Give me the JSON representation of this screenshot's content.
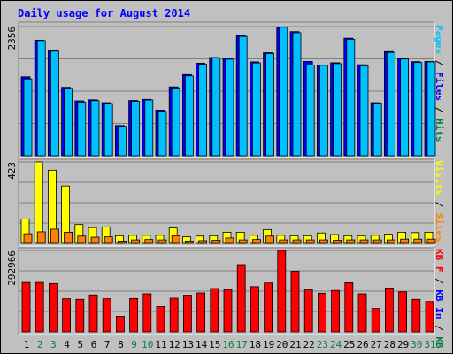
{
  "chart_data": {
    "type": "bar",
    "title": "Daily usage for August 2014",
    "categories": [
      "1",
      "2",
      "3",
      "4",
      "5",
      "6",
      "7",
      "8",
      "9",
      "10",
      "11",
      "12",
      "13",
      "14",
      "15",
      "16",
      "17",
      "18",
      "19",
      "20",
      "21",
      "22",
      "23",
      "24",
      "25",
      "26",
      "27",
      "28",
      "29",
      "30",
      "31"
    ],
    "weekend_days": [
      "2",
      "3",
      "9",
      "10",
      "16",
      "17",
      "23",
      "24",
      "30",
      "31"
    ],
    "grid": true,
    "panels": [
      {
        "id": "pages-files-hits",
        "max_label": "2356",
        "scale_max": 2356,
        "right_label_parts": [
          {
            "text": "Pages",
            "color": "#00c0ff"
          },
          {
            "text": " / ",
            "color": "#000000"
          },
          {
            "text": "Files",
            "color": "#0000ff"
          },
          {
            "text": " / ",
            "color": "#000000"
          },
          {
            "text": "Hits",
            "color": "#008040"
          }
        ],
        "series": [
          {
            "name": "Hits",
            "color": "#008040",
            "values": [
              1440,
              2108,
              1924,
              1248,
              1000,
              1020,
              968,
              552,
              1008,
              1028,
              832,
              1256,
              1480,
              1688,
              1792,
              1784,
              2196,
              1712,
              1880,
              2348,
              2264,
              1720,
              1656,
              1696,
              2144,
              1660,
              968,
              1900,
              1780,
              1716,
              1720
            ]
          },
          {
            "name": "Files",
            "color": "#0000ff",
            "values": [
              1440,
              2108,
              1924,
              1248,
              1000,
              1020,
              968,
              552,
              1008,
              1028,
              832,
              1256,
              1480,
              1688,
              1792,
              1784,
              2196,
              1712,
              1880,
              2348,
              2264,
              1720,
              1656,
              1696,
              2144,
              1660,
              968,
              1900,
              1780,
              1716,
              1720
            ]
          },
          {
            "name": "Pages",
            "color": "#00c0ff",
            "values": [
              1400,
              2100,
              1908,
              1228,
              976,
              1004,
              952,
              536,
              992,
              1016,
              808,
              1236,
              1456,
              1668,
              1784,
              1760,
              2176,
              1692,
              1864,
              2344,
              2244,
              1656,
              1648,
              1680,
              2124,
              1640,
              960,
              1884,
              1764,
              1700,
              1712
            ]
          }
        ]
      },
      {
        "id": "visits-sites",
        "max_label": "423",
        "scale_max": 423,
        "right_label_parts": [
          {
            "text": "Visits",
            "color": "#ffff00"
          },
          {
            "text": " / ",
            "color": "#000000"
          },
          {
            "text": "Sites",
            "color": "#ff8000"
          }
        ],
        "series": [
          {
            "name": "Visits",
            "color": "#ffff00",
            "values": [
              126,
              423,
              380,
              298,
              98,
              82,
              86,
              40,
              42,
              42,
              42,
              80,
              34,
              38,
              40,
              58,
              58,
              42,
              72,
              42,
              40,
              40,
              54,
              46,
              40,
              40,
              42,
              48,
              58,
              56,
              58
            ]
          },
          {
            "name": "Sites",
            "color": "#ff8000",
            "values": [
              50,
              60,
              74,
              58,
              38,
              32,
              34,
              12,
              18,
              20,
              18,
              40,
              12,
              14,
              16,
              28,
              18,
              20,
              38,
              18,
              18,
              18,
              18,
              16,
              18,
              18,
              18,
              18,
              22,
              22,
              22
            ]
          }
        ]
      },
      {
        "id": "kb-in-out",
        "max_label": "292966",
        "scale_max": 292966,
        "right_label_parts": [
          {
            "text": "KB F",
            "color": "#ff0000"
          },
          {
            "text": " / ",
            "color": "#000000"
          },
          {
            "text": "KB In",
            "color": "#0000ff"
          },
          {
            "text": " / ",
            "color": "#000000"
          },
          {
            "text": "KB Out",
            "color": "#008040"
          }
        ],
        "series": [
          {
            "name": "KB F",
            "color": "#ff0000",
            "values": [
              178000,
              178000,
              174000,
              119000,
              117000,
              133000,
              119000,
              56000,
              120000,
              137000,
              91000,
              121000,
              132000,
              140000,
              156000,
              152000,
              242000,
              163000,
              176000,
              292966,
              218000,
              151000,
              139000,
              149000,
              177000,
              137000,
              84000,
              158000,
              144000,
              117000,
              109000
            ]
          }
        ]
      }
    ]
  }
}
